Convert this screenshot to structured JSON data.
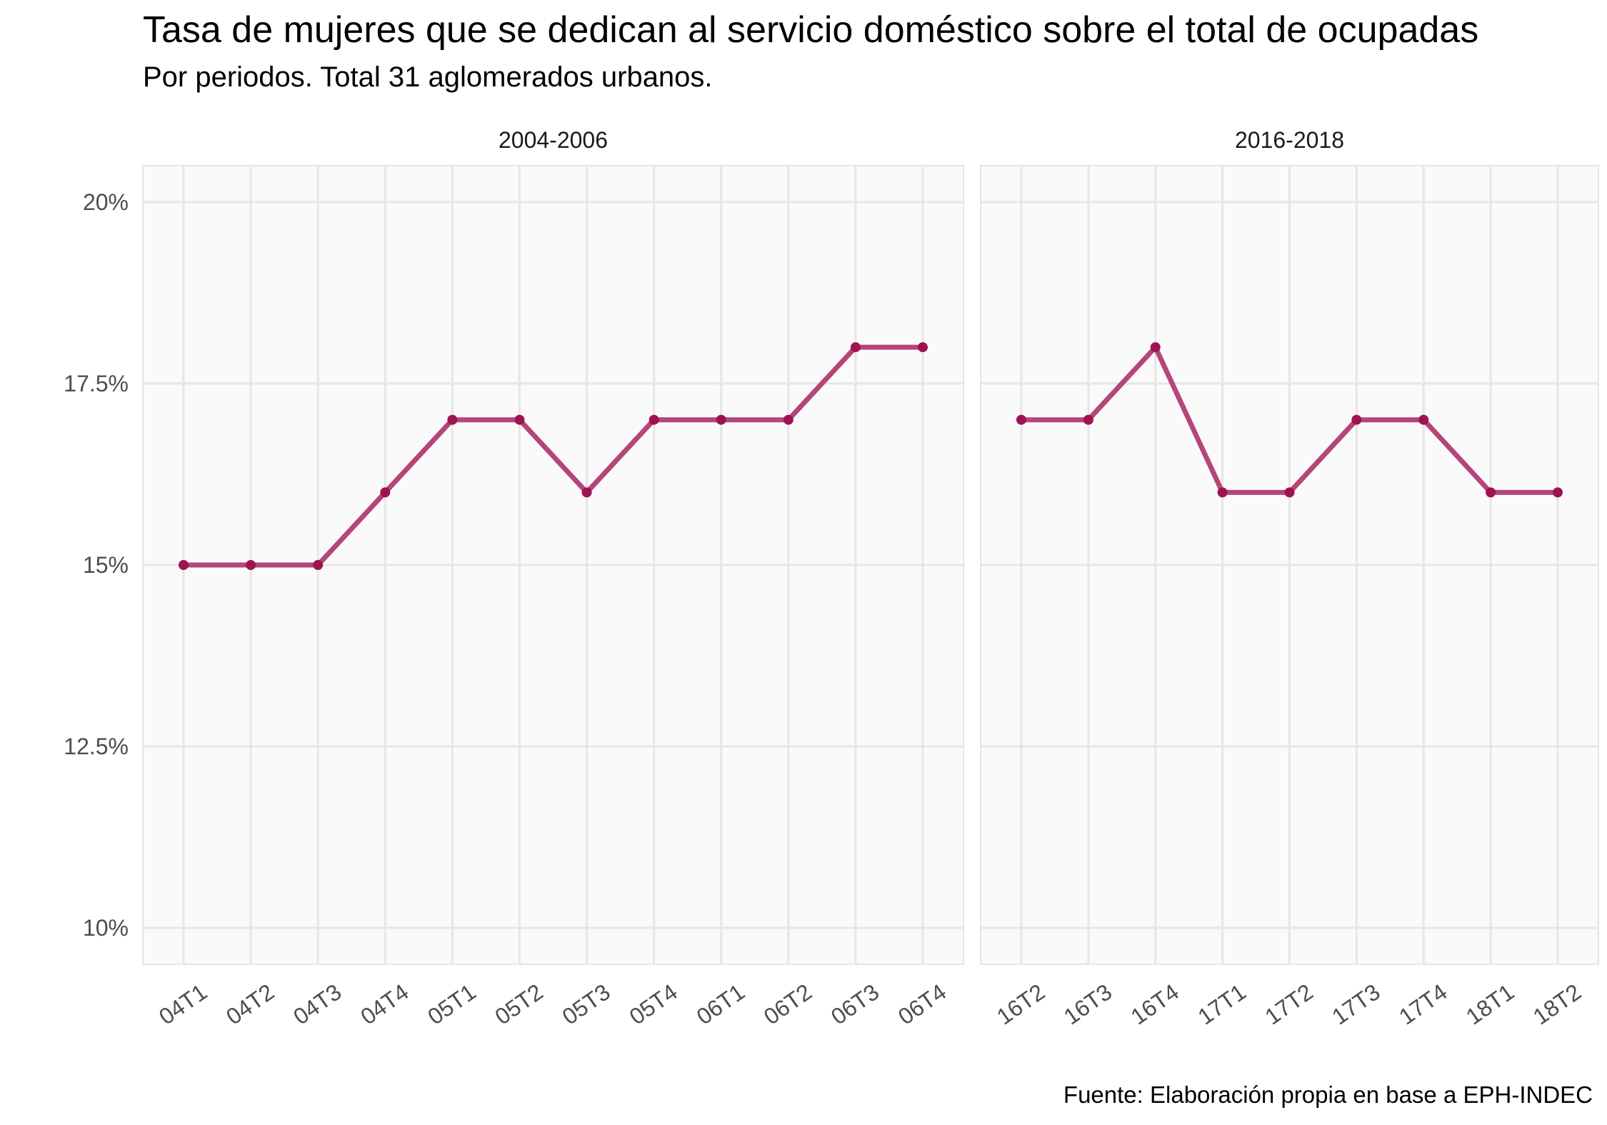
{
  "title": "Tasa de mujeres que se dedican al servicio doméstico sobre el total de ocupadas",
  "subtitle": "Por periodos. Total 31 aglomerados urbanos.",
  "caption": "Fuente: Elaboración propia en base a EPH-INDEC",
  "colors": {
    "line": "#B5457A",
    "point": "#9E1450",
    "panel_bg": "#FAFAFA",
    "grid": "#E6E6E6"
  },
  "chart_data": {
    "type": "line",
    "facet_layout": "two panels side by side, shared y axis",
    "ylim": [
      9.5,
      20.5
    ],
    "y_ticks": [
      10,
      12.5,
      15,
      17.5,
      20
    ],
    "y_tick_labels": [
      "10%",
      "12.5%",
      "15%",
      "17.5%",
      "20%"
    ],
    "grid": true,
    "panels": [
      {
        "label": "2004-2006",
        "x": [
          "04T1",
          "04T2",
          "04T3",
          "04T4",
          "05T1",
          "05T2",
          "05T3",
          "05T4",
          "06T1",
          "06T2",
          "06T3",
          "06T4"
        ],
        "values": [
          15,
          15,
          15,
          16,
          17,
          17,
          16,
          17,
          17,
          17,
          18,
          18
        ]
      },
      {
        "label": "2016-2018",
        "x": [
          "16T2",
          "16T3",
          "16T4",
          "17T1",
          "17T2",
          "17T3",
          "17T4",
          "18T1",
          "18T2"
        ],
        "values": [
          17,
          17,
          18,
          16,
          16,
          17,
          17,
          16,
          16
        ]
      }
    ]
  }
}
